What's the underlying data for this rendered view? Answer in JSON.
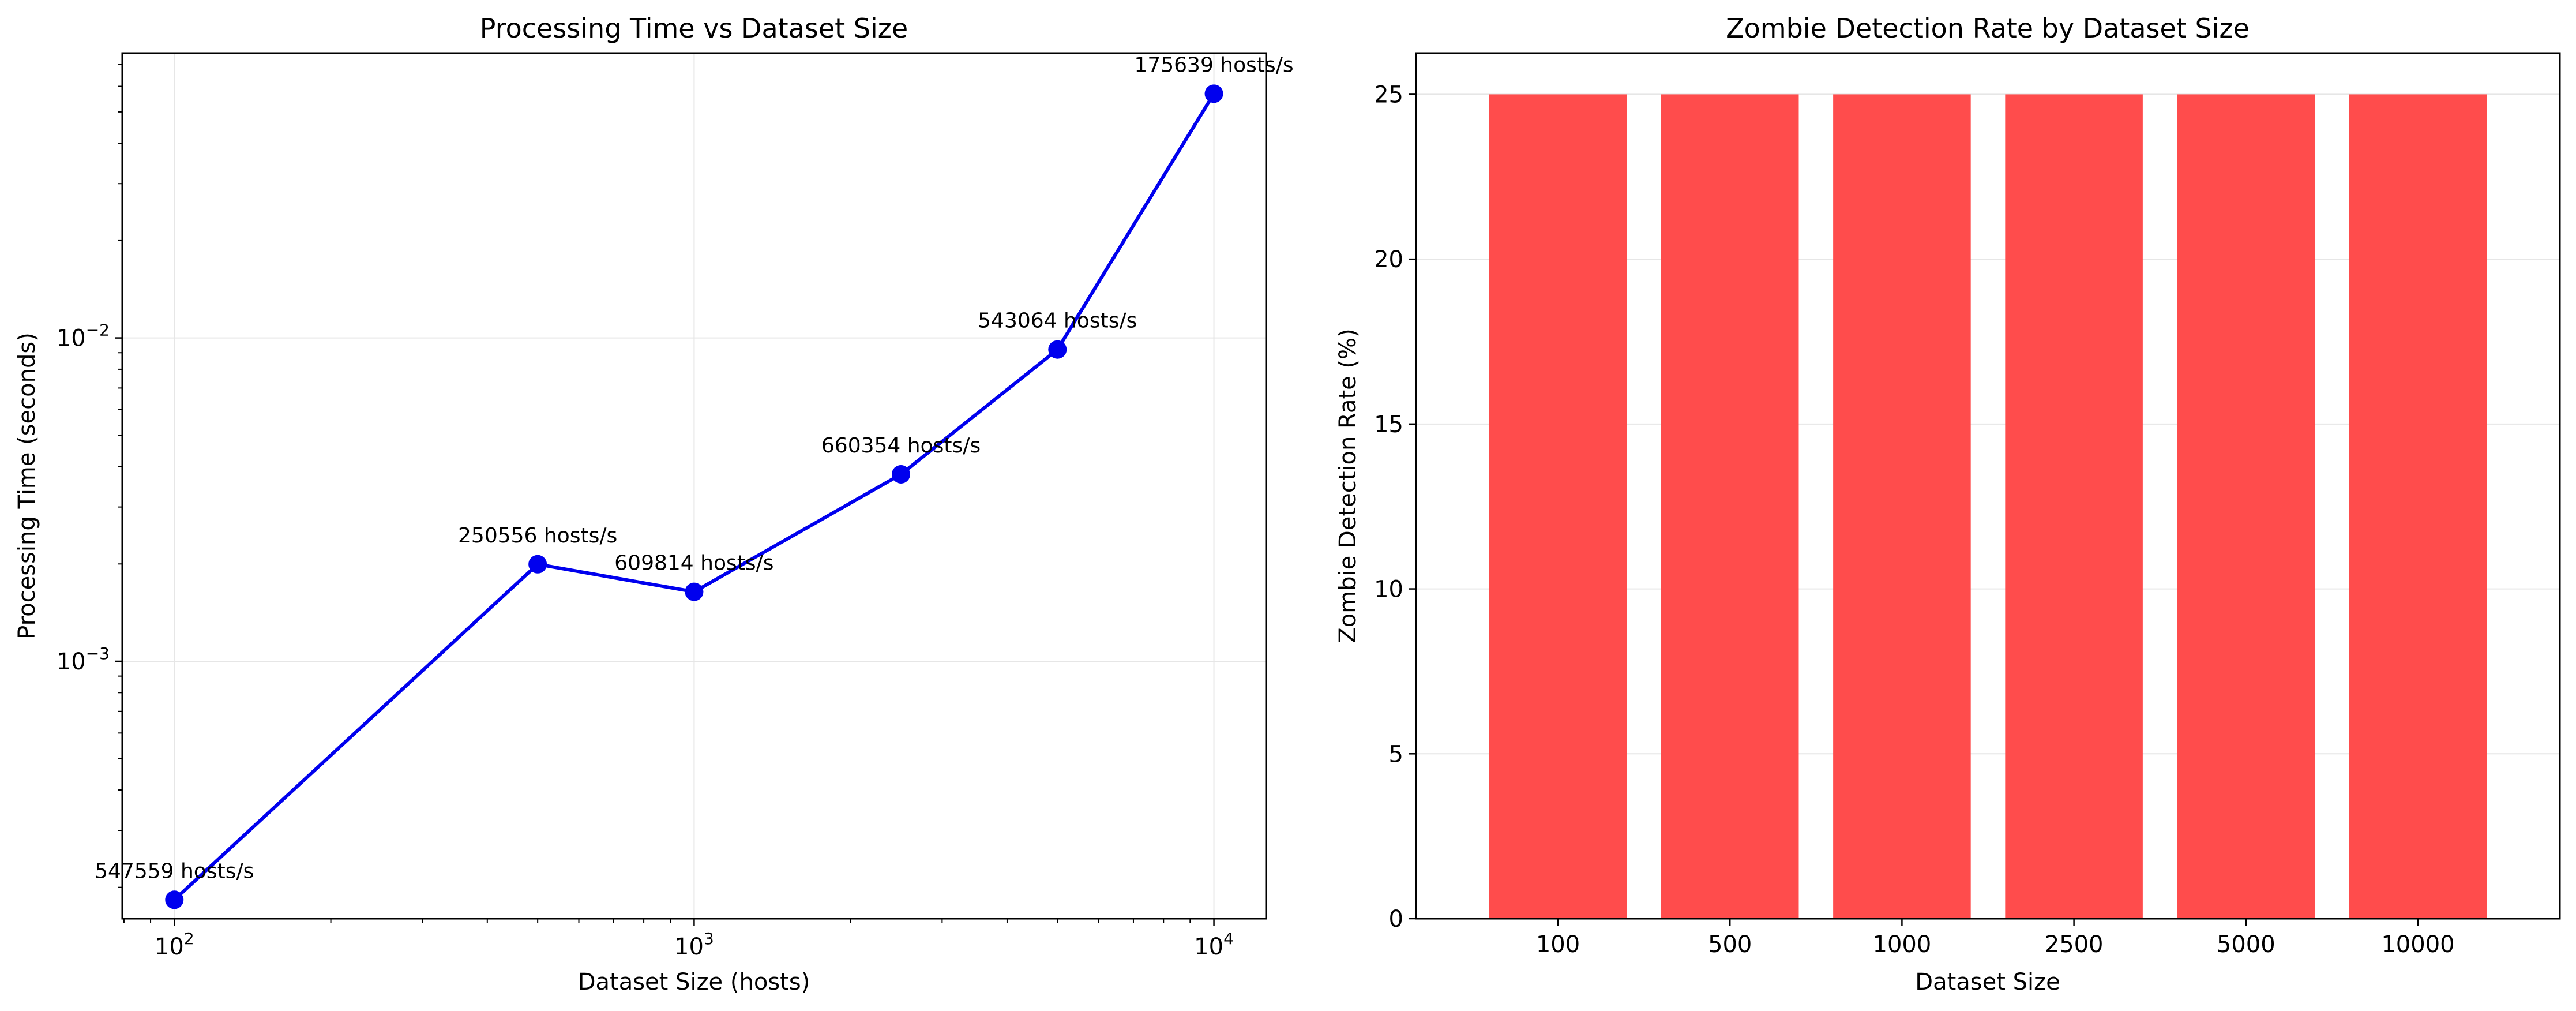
{
  "chart_data": [
    {
      "type": "line",
      "title": "Processing Time vs Dataset Size",
      "xlabel": "Dataset Size (hosts)",
      "ylabel": "Processing Time (seconds)",
      "xscale": "log",
      "yscale": "log",
      "xlim": [
        79.4,
        12600
      ],
      "ylim": [
        0.00016,
        0.076
      ],
      "grid": true,
      "x": [
        100,
        500,
        1000,
        2500,
        5000,
        10000
      ],
      "y": [
        0.000183,
        0.001996,
        0.00164,
        0.003786,
        0.009207,
        0.05693
      ],
      "color": "#0000ee",
      "xticks": [
        {
          "value": 100,
          "base": "10",
          "exp": "2"
        },
        {
          "value": 1000,
          "base": "10",
          "exp": "3"
        },
        {
          "value": 10000,
          "base": "10",
          "exp": "4"
        }
      ],
      "yticks": [
        {
          "value": 0.001,
          "base": "10",
          "exp": "−3"
        },
        {
          "value": 0.01,
          "base": "10",
          "exp": "−2"
        }
      ],
      "annotations": [
        "547559 hosts/s",
        "250556 hosts/s",
        "609814 hosts/s",
        "660354 hosts/s",
        "543064 hosts/s",
        "175639 hosts/s"
      ]
    },
    {
      "type": "bar",
      "title": "Zombie Detection Rate by Dataset Size",
      "xlabel": "Dataset Size",
      "ylabel": "Zombie Detection Rate (%)",
      "categories": [
        "100",
        "500",
        "1000",
        "2500",
        "5000",
        "10000"
      ],
      "values": [
        25,
        25,
        25,
        25,
        25,
        25
      ],
      "ylim": [
        0,
        26.25
      ],
      "yticks": [
        "0",
        "5",
        "10",
        "15",
        "20",
        "25"
      ],
      "grid": true,
      "color": "#ff4c4c"
    }
  ]
}
